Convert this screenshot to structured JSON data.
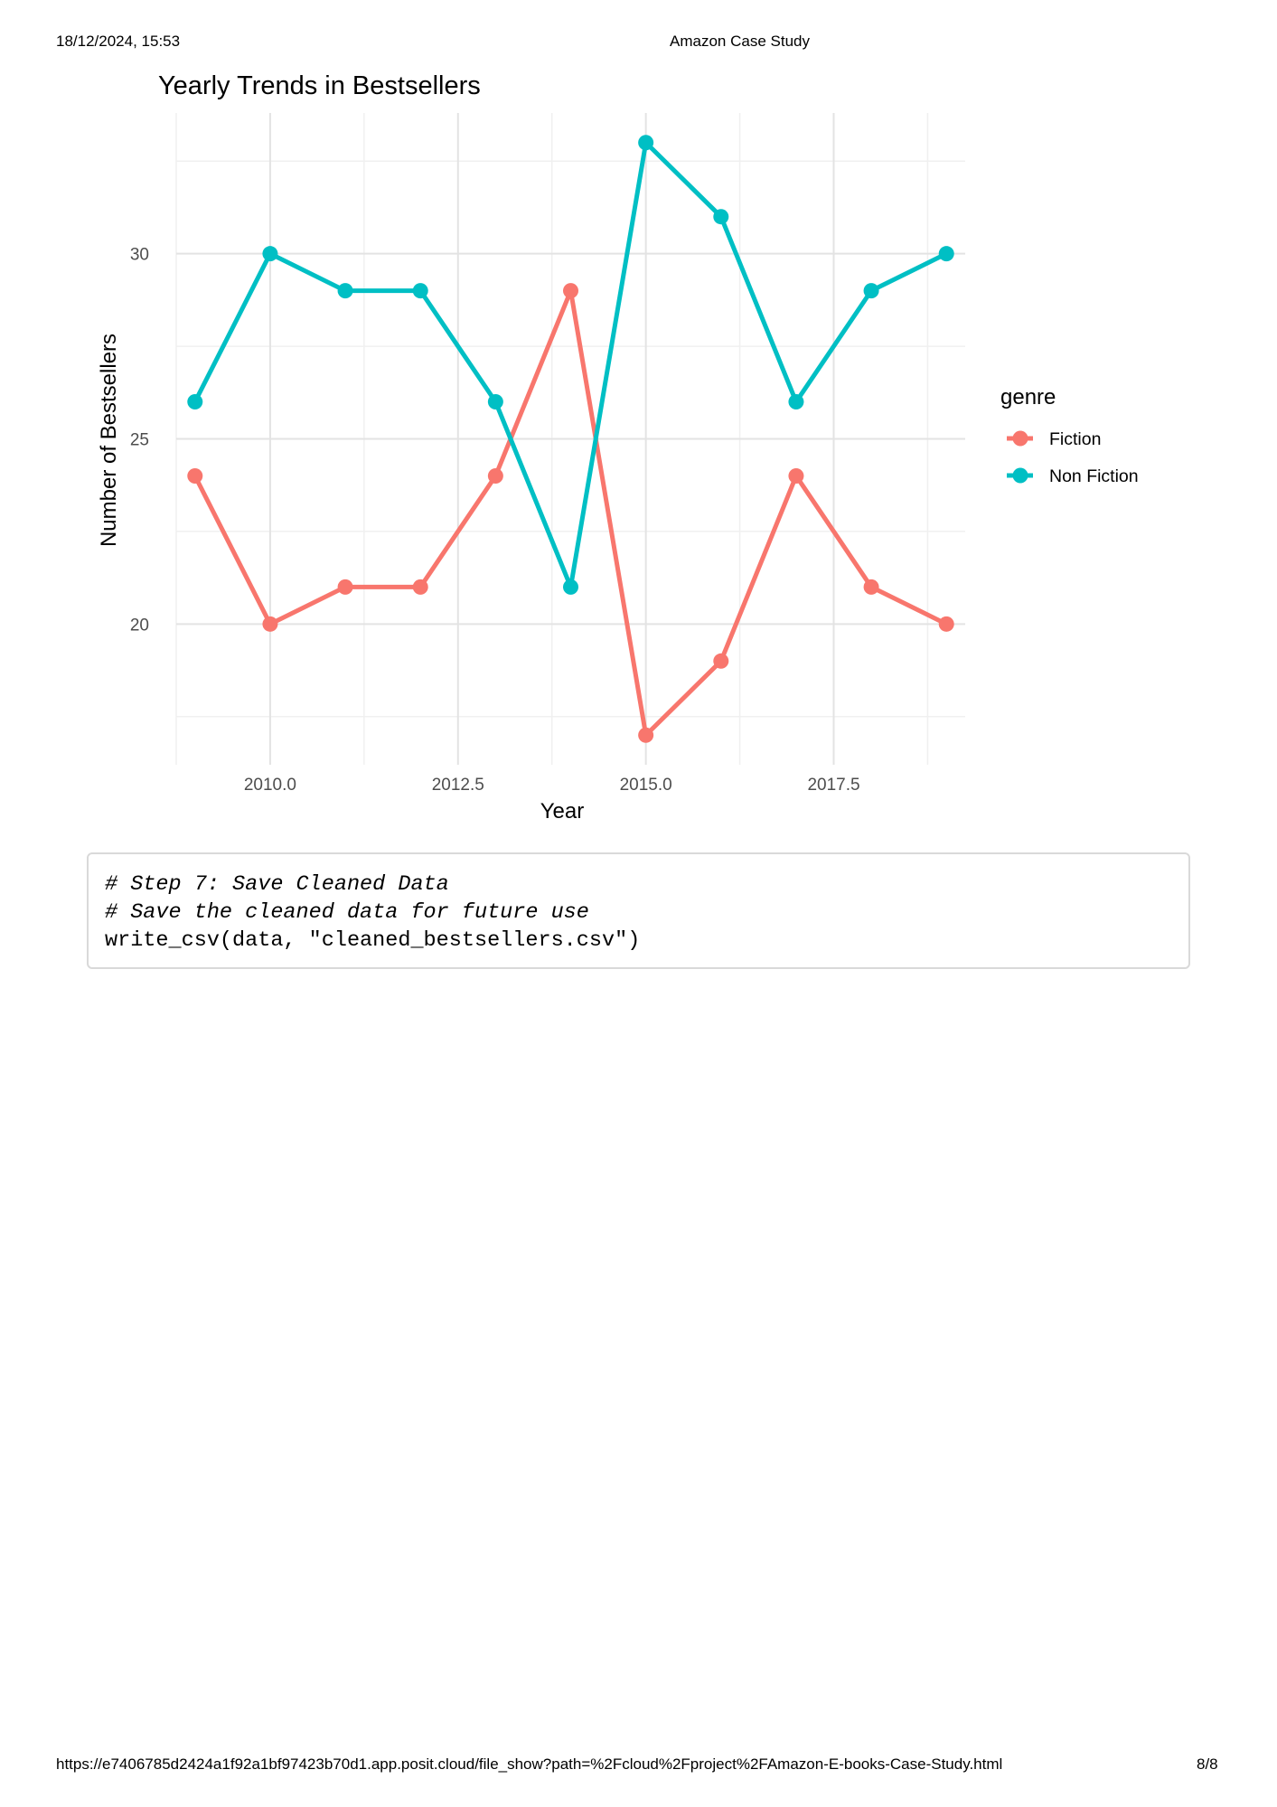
{
  "header": {
    "datetime": "18/12/2024, 15:53",
    "document_title": "Amazon Case Study"
  },
  "footer": {
    "url": "https://e7406785d2424a1f92a1bf97423b70d1.app.posit.cloud/file_show?path=%2Fcloud%2Fproject%2FAmazon-E-books-Case-Study.html",
    "page": "8/8"
  },
  "chart_data": {
    "type": "line",
    "title": "Yearly Trends in Bestsellers",
    "xlabel": "Year",
    "ylabel": "Number of Bestsellers",
    "x": [
      2009,
      2010,
      2011,
      2012,
      2013,
      2014,
      2015,
      2016,
      2017,
      2018,
      2019
    ],
    "series": [
      {
        "name": "Fiction",
        "color": "#F8766D",
        "values": [
          24,
          20,
          21,
          21,
          24,
          29,
          17,
          19,
          24,
          21,
          20
        ]
      },
      {
        "name": "Non Fiction",
        "color": "#00BFC4",
        "values": [
          26,
          30,
          29,
          29,
          26,
          21,
          33,
          31,
          26,
          29,
          30
        ]
      }
    ],
    "xlim": [
      2008.75,
      2019.25
    ],
    "ylim": [
      16.2,
      33.8
    ],
    "x_ticks": [
      2010.0,
      2012.5,
      2015.0,
      2017.5
    ],
    "x_tick_labels": [
      "2010.0",
      "2012.5",
      "2015.0",
      "2017.5"
    ],
    "y_ticks": [
      20,
      25,
      30
    ],
    "y_tick_labels": [
      "20",
      "25",
      "30"
    ],
    "legend_title": "genre",
    "legend_position": "right",
    "grid": true
  },
  "code_block": {
    "lines": [
      {
        "text": "# Step 7: Save Cleaned Data",
        "comment": true
      },
      {
        "text": "# Save the cleaned data for future use",
        "comment": true
      },
      {
        "text": "write_csv(data, \"cleaned_bestsellers.csv\")",
        "comment": false
      }
    ]
  }
}
